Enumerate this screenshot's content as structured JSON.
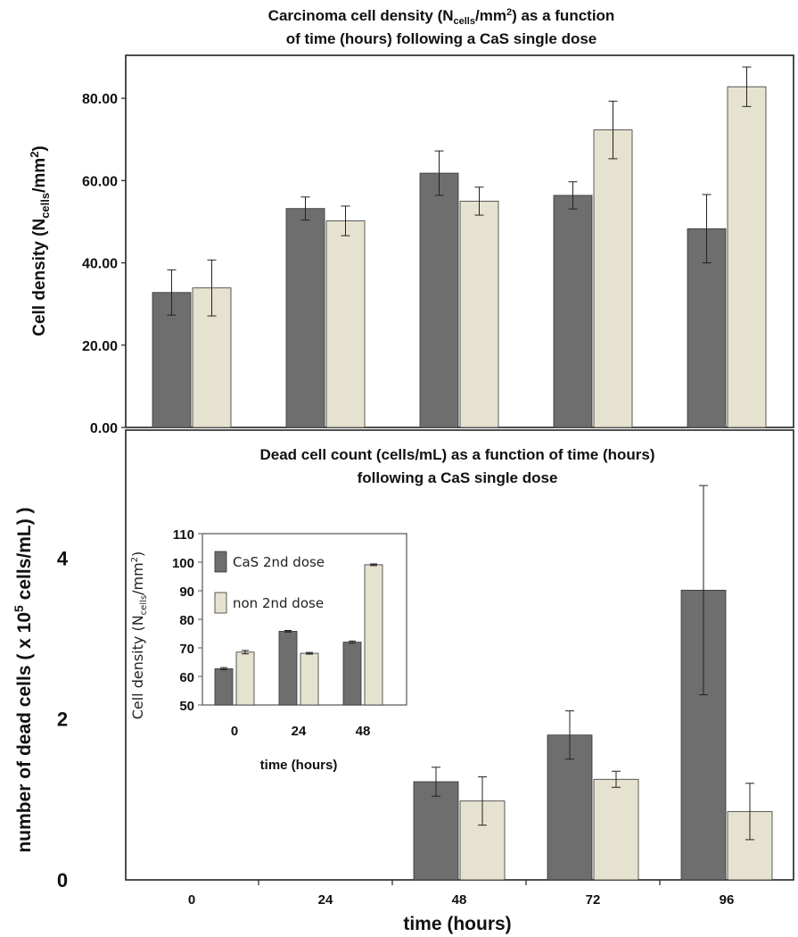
{
  "colors": {
    "series1": "#6e6e6e",
    "series2": "#e6e2d0",
    "border": "#222222",
    "error": "#222222"
  },
  "chart_data": [
    {
      "type": "bar",
      "title_line1_pre": "Carcinoma cell density (N",
      "title_sub": "cells",
      "title_line1_post": "/mm",
      "title_sup": "2",
      "title_line1_end": ") as a function",
      "title_line2": "of time (hours) following a CaS single dose",
      "ylabel_pre": "Cell density (N",
      "ylabel_sub": "cells",
      "ylabel_mid": "/mm",
      "ylabel_sup": "2",
      "ylabel_end": ")",
      "ylim": [
        0,
        90
      ],
      "yticks": [
        {
          "value": 0,
          "label": "0.00"
        },
        {
          "value": 20,
          "label": "20.00"
        },
        {
          "value": 40,
          "label": "40.00"
        },
        {
          "value": 60,
          "label": "60.00"
        },
        {
          "value": 80,
          "label": "80.00"
        }
      ],
      "series": [
        {
          "values": [
            32.8,
            53.2,
            61.8,
            56.4,
            48.3
          ],
          "errors": [
            5.5,
            2.8,
            5.4,
            3.3,
            8.3
          ]
        },
        {
          "values": [
            33.9,
            50.2,
            55.0,
            72.3,
            82.8
          ],
          "errors": [
            6.8,
            3.6,
            3.4,
            7.0,
            4.8
          ]
        }
      ]
    },
    {
      "type": "bar",
      "title_line1": "Dead cell count (cells/mL) as a function of time (hours)",
      "title_line2": "following a CaS single dose",
      "ylabel_pre": "number of dead cells ( x 10",
      "ylabel_sup": "5",
      "ylabel_end": " cells/mL)  )",
      "xlabel": "time (hours)",
      "categories": [
        "0",
        "24",
        "48",
        "72",
        "96"
      ],
      "ylim": [
        0,
        5.5
      ],
      "yticks": [
        {
          "value": 0,
          "label": "0"
        },
        {
          "value": 2,
          "label": "2"
        },
        {
          "value": 4,
          "label": "4"
        }
      ],
      "series": [
        {
          "values": [
            null,
            null,
            1.22,
            1.8,
            3.6
          ],
          "errors": [
            null,
            null,
            0.18,
            0.3,
            1.3
          ]
        },
        {
          "values": [
            null,
            null,
            0.98,
            1.25,
            0.85
          ],
          "errors": [
            null,
            null,
            0.3,
            0.1,
            0.35
          ]
        }
      ]
    },
    {
      "type": "bar",
      "ylabel_pre": "Cell density (N",
      "ylabel_sub": "cells",
      "ylabel_mid": "/mm",
      "ylabel_sup": "2",
      "ylabel_end": ")",
      "xlabel": "time (hours)",
      "categories": [
        "0",
        "24",
        "48"
      ],
      "ylim": [
        50,
        110
      ],
      "yticks": [
        {
          "value": 50,
          "label": "50"
        },
        {
          "value": 60,
          "label": "60"
        },
        {
          "value": 70,
          "label": "70"
        },
        {
          "value": 80,
          "label": "80"
        },
        {
          "value": 90,
          "label": "90"
        },
        {
          "value": 100,
          "label": "100"
        },
        {
          "value": 110,
          "label": "110"
        }
      ],
      "legend_position": "top-left",
      "series": [
        {
          "name": "CaS 2nd dose",
          "values": [
            62.7,
            75.8,
            72.0
          ],
          "errors": [
            0.4,
            0.3,
            0.4
          ]
        },
        {
          "name": "non 2nd dose",
          "values": [
            68.5,
            68.1,
            99.1
          ],
          "errors": [
            0.6,
            0.3,
            0.3
          ]
        }
      ]
    }
  ]
}
